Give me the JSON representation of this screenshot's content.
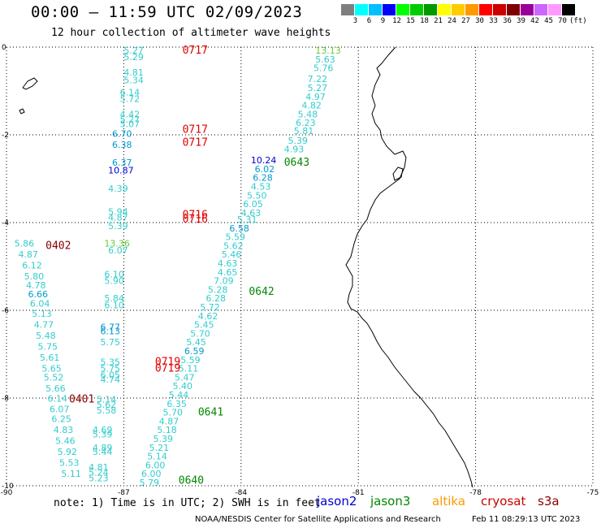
{
  "header": {
    "title": "00:00 – 11:59 UTC 02/09/2023",
    "subtitle": "12 hour collection of altimeter wave heights"
  },
  "colorbar": {
    "labels": [
      "3",
      "6",
      "9",
      "12",
      "15",
      "18",
      "21",
      "24",
      "27",
      "30",
      "33",
      "36",
      "39",
      "42",
      "45",
      "70"
    ],
    "colors": [
      "#7f7f7f",
      "#00ffff",
      "#00bfff",
      "#0000ff",
      "#00ff00",
      "#00cc00",
      "#009900",
      "#ffff00",
      "#ffcc00",
      "#ff9900",
      "#ff0000",
      "#cc0000",
      "#800000",
      "#990099",
      "#cc66ff",
      "#ff99ff",
      "#000000"
    ],
    "unit": "(ft)"
  },
  "axes": {
    "x_ticks": [
      "-90",
      "-87",
      "-84",
      "-81",
      "-78",
      "-75"
    ],
    "y_ticks": [
      "0",
      "-2",
      "-4",
      "-6",
      "-8",
      "-10"
    ]
  },
  "footer": {
    "note": "note:  1) Time is in UTC;  2) SWH is in feet",
    "satellites": [
      {
        "name": "jason2",
        "color": "#0000cc"
      },
      {
        "name": "jason3",
        "color": "#008800"
      },
      {
        "name": "altika",
        "color": "#ff9900"
      },
      {
        "name": "cryosat",
        "color": "#cc0000"
      },
      {
        "name": "s3a",
        "color": "#880000"
      }
    ],
    "credit": "NOAA/NESDIS Center for Satellite Applications and Research",
    "timestamp": "Feb 11 08:29:13 UTC 2023"
  },
  "pass_labels": [
    {
      "text": "0717",
      "color": "#e00000",
      "lon": -85.5,
      "lat": -0.15
    },
    {
      "text": "0717",
      "color": "#e00000",
      "lon": -85.5,
      "lat": -1.95
    },
    {
      "text": "0717",
      "color": "#e00000",
      "lon": -85.5,
      "lat": -2.25
    },
    {
      "text": "0716",
      "color": "#e00000",
      "lon": -85.5,
      "lat": -3.9
    },
    {
      "text": "0716",
      "color": "#e00000",
      "lon": -85.5,
      "lat": -4.0
    },
    {
      "text": "0719",
      "color": "#e00000",
      "lon": -86.2,
      "lat": -7.25
    },
    {
      "text": "0719",
      "color": "#e00000",
      "lon": -86.2,
      "lat": -7.4
    },
    {
      "text": "0402",
      "color": "#880000",
      "lon": -89.0,
      "lat": -4.6
    },
    {
      "text": "0401",
      "color": "#880000",
      "lon": -88.4,
      "lat": -8.1
    },
    {
      "text": "0643",
      "color": "#008800",
      "lon": -82.9,
      "lat": -2.7
    },
    {
      "text": "0642",
      "color": "#008800",
      "lon": -83.8,
      "lat": -5.65
    },
    {
      "text": "0641",
      "color": "#008800",
      "lon": -85.1,
      "lat": -8.4
    },
    {
      "text": "0640",
      "color": "#008800",
      "lon": -85.6,
      "lat": -9.95
    }
  ],
  "wave_heights": [
    {
      "v": "5.27",
      "c": "#33cccc",
      "lon": -87.0,
      "lat": -0.15
    },
    {
      "v": "5.29",
      "c": "#33cccc",
      "lon": -87.0,
      "lat": -0.3
    },
    {
      "v": "4.81",
      "c": "#33cccc",
      "lon": -87.0,
      "lat": -0.65
    },
    {
      "v": "5.34",
      "c": "#33cccc",
      "lon": -87.0,
      "lat": -0.82
    },
    {
      "v": "6.14",
      "c": "#33cccc",
      "lon": -87.1,
      "lat": -1.1
    },
    {
      "v": "5.72",
      "c": "#33cccc",
      "lon": -87.1,
      "lat": -1.25
    },
    {
      "v": "4.42",
      "c": "#33cccc",
      "lon": -87.1,
      "lat": -1.6
    },
    {
      "v": "5.27",
      "c": "#33cccc",
      "lon": -87.1,
      "lat": -1.72
    },
    {
      "v": "5.07",
      "c": "#33cccc",
      "lon": -87.1,
      "lat": -1.82
    },
    {
      "v": "6.70",
      "c": "#0099cc",
      "lon": -87.3,
      "lat": -2.05
    },
    {
      "v": "6.38",
      "c": "#0099cc",
      "lon": -87.3,
      "lat": -2.3
    },
    {
      "v": "6.37",
      "c": "#0099cc",
      "lon": -87.3,
      "lat": -2.7
    },
    {
      "v": "10.87",
      "c": "#0000cc",
      "lon": -87.4,
      "lat": -2.88
    },
    {
      "v": "4.39",
      "c": "#33cccc",
      "lon": -87.4,
      "lat": -3.3
    },
    {
      "v": "5.94",
      "c": "#33cccc",
      "lon": -87.4,
      "lat": -3.82
    },
    {
      "v": "4.87",
      "c": "#33cccc",
      "lon": -87.4,
      "lat": -3.95
    },
    {
      "v": "5.39",
      "c": "#33cccc",
      "lon": -87.4,
      "lat": -4.15
    },
    {
      "v": "13.36",
      "c": "#66cc33",
      "lon": -87.5,
      "lat": -4.55
    },
    {
      "v": "6.07",
      "c": "#33cccc",
      "lon": -87.4,
      "lat": -4.7
    },
    {
      "v": "6.10",
      "c": "#33cccc",
      "lon": -87.5,
      "lat": -5.25
    },
    {
      "v": "5.90",
      "c": "#33cccc",
      "lon": -87.5,
      "lat": -5.4
    },
    {
      "v": "5.84",
      "c": "#33cccc",
      "lon": -87.5,
      "lat": -5.8
    },
    {
      "v": "6.10",
      "c": "#33cccc",
      "lon": -87.5,
      "lat": -5.95
    },
    {
      "v": "6.77",
      "c": "#0099cc",
      "lon": -87.6,
      "lat": -6.45
    },
    {
      "v": "6.13",
      "c": "#0099cc",
      "lon": -87.6,
      "lat": -6.55
    },
    {
      "v": "5.75",
      "c": "#33cccc",
      "lon": -87.6,
      "lat": -6.8
    },
    {
      "v": "5.35",
      "c": "#33cccc",
      "lon": -87.6,
      "lat": -7.25
    },
    {
      "v": "5.75",
      "c": "#33cccc",
      "lon": -87.6,
      "lat": -7.4
    },
    {
      "v": "6.05",
      "c": "#33cccc",
      "lon": -87.6,
      "lat": -7.55
    },
    {
      "v": "4.74",
      "c": "#33cccc",
      "lon": -87.6,
      "lat": -7.65
    },
    {
      "v": "5.14",
      "c": "#33cccc",
      "lon": -87.7,
      "lat": -8.1
    },
    {
      "v": "5.62",
      "c": "#33cccc",
      "lon": -87.7,
      "lat": -8.22
    },
    {
      "v": "5.58",
      "c": "#33cccc",
      "lon": -87.7,
      "lat": -8.35
    },
    {
      "v": "4.69",
      "c": "#33cccc",
      "lon": -87.8,
      "lat": -8.8
    },
    {
      "v": "5.39",
      "c": "#33cccc",
      "lon": -87.8,
      "lat": -8.9
    },
    {
      "v": "4.89",
      "c": "#33cccc",
      "lon": -87.8,
      "lat": -9.2
    },
    {
      "v": "5.44",
      "c": "#33cccc",
      "lon": -87.8,
      "lat": -9.3
    },
    {
      "v": "4.81",
      "c": "#33cccc",
      "lon": -87.9,
      "lat": -9.65
    },
    {
      "v": "5.24",
      "c": "#33cccc",
      "lon": -87.9,
      "lat": -9.77
    },
    {
      "v": "5.23",
      "c": "#33cccc",
      "lon": -87.9,
      "lat": -9.9
    },
    {
      "v": "5.86",
      "c": "#33cccc",
      "lon": -89.8,
      "lat": -4.55
    },
    {
      "v": "4.87",
      "c": "#33cccc",
      "lon": -89.7,
      "lat": -4.8
    },
    {
      "v": "6.12",
      "c": "#33cccc",
      "lon": -89.6,
      "lat": -5.05
    },
    {
      "v": "5.80",
      "c": "#33cccc",
      "lon": -89.55,
      "lat": -5.3
    },
    {
      "v": "4.78",
      "c": "#33cccc",
      "lon": -89.5,
      "lat": -5.5
    },
    {
      "v": "6.66",
      "c": "#0099cc",
      "lon": -89.45,
      "lat": -5.7
    },
    {
      "v": "6.04",
      "c": "#33cccc",
      "lon": -89.4,
      "lat": -5.92
    },
    {
      "v": "5.13",
      "c": "#33cccc",
      "lon": -89.35,
      "lat": -6.15
    },
    {
      "v": "4.77",
      "c": "#33cccc",
      "lon": -89.3,
      "lat": -6.4
    },
    {
      "v": "5.48",
      "c": "#33cccc",
      "lon": -89.25,
      "lat": -6.65
    },
    {
      "v": "5.75",
      "c": "#33cccc",
      "lon": -89.2,
      "lat": -6.9
    },
    {
      "v": "5.61",
      "c": "#33cccc",
      "lon": -89.15,
      "lat": -7.15
    },
    {
      "v": "5.65",
      "c": "#33cccc",
      "lon": -89.1,
      "lat": -7.4
    },
    {
      "v": "5.52",
      "c": "#33cccc",
      "lon": -89.05,
      "lat": -7.6
    },
    {
      "v": "5.66",
      "c": "#33cccc",
      "lon": -89.0,
      "lat": -7.85
    },
    {
      "v": "6.14",
      "c": "#33cccc",
      "lon": -88.95,
      "lat": -8.08
    },
    {
      "v": "6.07",
      "c": "#33cccc",
      "lon": -88.9,
      "lat": -8.32
    },
    {
      "v": "6.25",
      "c": "#33cccc",
      "lon": -88.85,
      "lat": -8.55
    },
    {
      "v": "4.83",
      "c": "#33cccc",
      "lon": -88.8,
      "lat": -8.8
    },
    {
      "v": "5.46",
      "c": "#33cccc",
      "lon": -88.75,
      "lat": -9.05
    },
    {
      "v": "5.92",
      "c": "#33cccc",
      "lon": -88.7,
      "lat": -9.3
    },
    {
      "v": "5.53",
      "c": "#33cccc",
      "lon": -88.65,
      "lat": -9.55
    },
    {
      "v": "5.11",
      "c": "#33cccc",
      "lon": -88.6,
      "lat": -9.8
    },
    {
      "v": "13.13",
      "c": "#66cc33",
      "lon": -82.1,
      "lat": -0.15
    },
    {
      "v": "5.63",
      "c": "#33cccc",
      "lon": -82.1,
      "lat": -0.35
    },
    {
      "v": "5.76",
      "c": "#33cccc",
      "lon": -82.15,
      "lat": -0.55
    },
    {
      "v": "7.22",
      "c": "#33cccc",
      "lon": -82.3,
      "lat": -0.8
    },
    {
      "v": "5.27",
      "c": "#33cccc",
      "lon": -82.3,
      "lat": -1.0
    },
    {
      "v": "4.97",
      "c": "#33cccc",
      "lon": -82.35,
      "lat": -1.2
    },
    {
      "v": "4.82",
      "c": "#33cccc",
      "lon": -82.45,
      "lat": -1.4
    },
    {
      "v": "5.48",
      "c": "#33cccc",
      "lon": -82.55,
      "lat": -1.6
    },
    {
      "v": "6.23",
      "c": "#33cccc",
      "lon": -82.6,
      "lat": -1.8
    },
    {
      "v": "5.81",
      "c": "#33cccc",
      "lon": -82.65,
      "lat": -1.98
    },
    {
      "v": "5.39",
      "c": "#33cccc",
      "lon": -82.8,
      "lat": -2.2
    },
    {
      "v": "4.93",
      "c": "#33cccc",
      "lon": -82.9,
      "lat": -2.4
    },
    {
      "v": "10.24",
      "c": "#0000cc",
      "lon": -83.75,
      "lat": -2.65
    },
    {
      "v": "6.02",
      "c": "#0099cc",
      "lon": -83.65,
      "lat": -2.85
    },
    {
      "v": "6.28",
      "c": "#0099cc",
      "lon": -83.7,
      "lat": -3.05
    },
    {
      "v": "4.53",
      "c": "#33cccc",
      "lon": -83.75,
      "lat": -3.25
    },
    {
      "v": "5.50",
      "c": "#33cccc",
      "lon": -83.85,
      "lat": -3.45
    },
    {
      "v": "6.05",
      "c": "#33cccc",
      "lon": -83.95,
      "lat": -3.65
    },
    {
      "v": "4.63",
      "c": "#33cccc",
      "lon": -84.0,
      "lat": -3.85
    },
    {
      "v": "5.31",
      "c": "#33cccc",
      "lon": -84.1,
      "lat": -4.0
    },
    {
      "v": "6.58",
      "c": "#0099cc",
      "lon": -84.3,
      "lat": -4.2
    },
    {
      "v": "5.59",
      "c": "#33cccc",
      "lon": -84.4,
      "lat": -4.4
    },
    {
      "v": "5.62",
      "c": "#33cccc",
      "lon": -84.45,
      "lat": -4.6
    },
    {
      "v": "5.46",
      "c": "#33cccc",
      "lon": -84.5,
      "lat": -4.8
    },
    {
      "v": "4.63",
      "c": "#33cccc",
      "lon": -84.6,
      "lat": -5.0
    },
    {
      "v": "4.65",
      "c": "#33cccc",
      "lon": -84.6,
      "lat": -5.2
    },
    {
      "v": "7.09",
      "c": "#33cccc",
      "lon": -84.7,
      "lat": -5.4
    },
    {
      "v": "5.28",
      "c": "#33cccc",
      "lon": -84.85,
      "lat": -5.6
    },
    {
      "v": "6.28",
      "c": "#33cccc",
      "lon": -84.9,
      "lat": -5.8
    },
    {
      "v": "5.72",
      "c": "#33cccc",
      "lon": -85.05,
      "lat": -6.0
    },
    {
      "v": "4.62",
      "c": "#33cccc",
      "lon": -85.1,
      "lat": -6.2
    },
    {
      "v": "5.45",
      "c": "#33cccc",
      "lon": -85.2,
      "lat": -6.4
    },
    {
      "v": "5.70",
      "c": "#33cccc",
      "lon": -85.3,
      "lat": -6.6
    },
    {
      "v": "5.45",
      "c": "#33cccc",
      "lon": -85.4,
      "lat": -6.8
    },
    {
      "v": "6.59",
      "c": "#0099cc",
      "lon": -85.45,
      "lat": -7.0
    },
    {
      "v": "5.59",
      "c": "#33cccc",
      "lon": -85.55,
      "lat": -7.2
    },
    {
      "v": "5.11",
      "c": "#33cccc",
      "lon": -85.6,
      "lat": -7.4
    },
    {
      "v": "5.47",
      "c": "#33cccc",
      "lon": -85.7,
      "lat": -7.6
    },
    {
      "v": "5.40",
      "c": "#33cccc",
      "lon": -85.75,
      "lat": -7.8
    },
    {
      "v": "5.44",
      "c": "#33cccc",
      "lon": -85.85,
      "lat": -8.0
    },
    {
      "v": "6.35",
      "c": "#33cccc",
      "lon": -85.9,
      "lat": -8.2
    },
    {
      "v": "5.70",
      "c": "#33cccc",
      "lon": -86.0,
      "lat": -8.4
    },
    {
      "v": "4.87",
      "c": "#33cccc",
      "lon": -86.1,
      "lat": -8.6
    },
    {
      "v": "5.18",
      "c": "#33cccc",
      "lon": -86.15,
      "lat": -8.8
    },
    {
      "v": "5.39",
      "c": "#33cccc",
      "lon": -86.25,
      "lat": -9.0
    },
    {
      "v": "5.21",
      "c": "#33cccc",
      "lon": -86.35,
      "lat": -9.2
    },
    {
      "v": "5.14",
      "c": "#33cccc",
      "lon": -86.4,
      "lat": -9.4
    },
    {
      "v": "6.00",
      "c": "#33cccc",
      "lon": -86.45,
      "lat": -9.6
    },
    {
      "v": "6.00",
      "c": "#33cccc",
      "lon": -86.55,
      "lat": -9.8
    },
    {
      "v": "5.79",
      "c": "#33cccc",
      "lon": -86.6,
      "lat": -10.0
    }
  ]
}
